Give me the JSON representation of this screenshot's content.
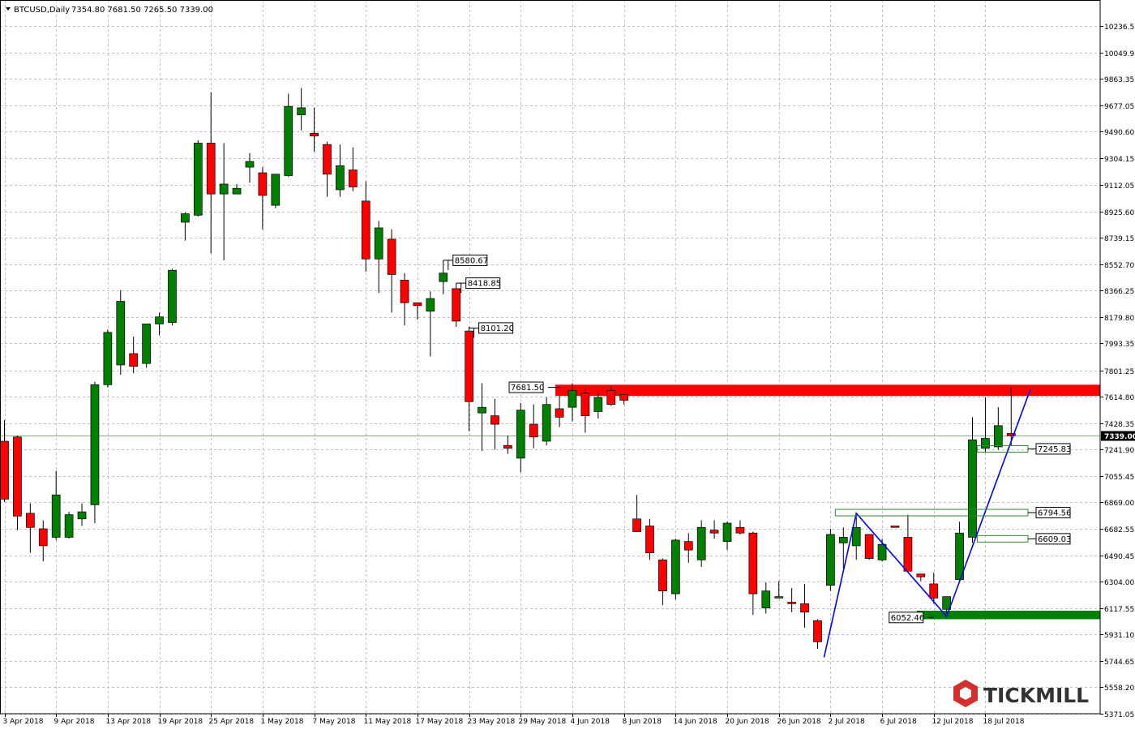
{
  "header": {
    "symbol_label": "BTCUSD,Daily",
    "ohlc_text": "7354.80 7681.50 7265.50 7339.00"
  },
  "brand": {
    "name": "TICKMILL",
    "accent": "#d32f2f",
    "dark": "#333333"
  },
  "colors": {
    "bull": "#008000",
    "bear": "#ff0000",
    "wick": "#000000",
    "grid": "#c0c0c0",
    "bid_line": "#7fb27f",
    "pattern_line": "#0000ff"
  },
  "chart_data": {
    "type": "candlestick",
    "symbol": "BTCUSD",
    "timeframe": "Daily",
    "last_price": 7339.0,
    "ylim": [
      5371.05,
      10423.0
    ],
    "y_ticks": [
      10236.55,
      10049.95,
      9863.35,
      9677.05,
      9490.6,
      9304.15,
      9112.05,
      8925.6,
      8739.15,
      8552.7,
      8366.25,
      8179.8,
      7993.35,
      7801.25,
      7614.8,
      7428.35,
      7241.9,
      7055.45,
      6869.0,
      6682.55,
      6490.45,
      6304.0,
      6117.55,
      5931.1,
      5744.65,
      5558.2,
      5371.05
    ],
    "x_labels": [
      {
        "i": 0,
        "label": "3 Apr 2018"
      },
      {
        "i": 4,
        "label": "9 Apr 2018"
      },
      {
        "i": 8,
        "label": "13 Apr 2018"
      },
      {
        "i": 12,
        "label": "19 Apr 2018"
      },
      {
        "i": 16,
        "label": "25 Apr 2018"
      },
      {
        "i": 20,
        "label": "1 May 2018"
      },
      {
        "i": 24,
        "label": "7 May 2018"
      },
      {
        "i": 28,
        "label": "11 May 2018"
      },
      {
        "i": 32,
        "label": "17 May 2018"
      },
      {
        "i": 36,
        "label": "23 May 2018"
      },
      {
        "i": 40,
        "label": "29 May 2018"
      },
      {
        "i": 44,
        "label": "4 Jun 2018"
      },
      {
        "i": 48,
        "label": "8 Jun 2018"
      },
      {
        "i": 52,
        "label": "14 Jun 2018"
      },
      {
        "i": 56,
        "label": "20 Jun 2018"
      },
      {
        "i": 60,
        "label": "26 Jun 2018"
      },
      {
        "i": 64,
        "label": "2 Jul 2018"
      },
      {
        "i": 68,
        "label": "6 Jul 2018"
      },
      {
        "i": 72,
        "label": "12 Jul 2018"
      },
      {
        "i": 76,
        "label": "18 Jul 2018"
      }
    ],
    "candles": [
      [
        7300,
        7450,
        6870,
        6890
      ],
      [
        7330,
        7340,
        6670,
        6770
      ],
      [
        6790,
        6860,
        6510,
        6690
      ],
      [
        6680,
        6740,
        6450,
        6560
      ],
      [
        6620,
        7090,
        6600,
        6920
      ],
      [
        6620,
        6800,
        6610,
        6780
      ],
      [
        6750,
        6860,
        6700,
        6800
      ],
      [
        6850,
        7720,
        6720,
        7700
      ],
      [
        7700,
        8090,
        7680,
        8070
      ],
      [
        7840,
        8370,
        7770,
        8290
      ],
      [
        7920,
        8040,
        7780,
        7830
      ],
      [
        7850,
        8130,
        7820,
        8130
      ],
      [
        8130,
        8210,
        8050,
        8180
      ],
      [
        8140,
        8520,
        8120,
        8510
      ],
      [
        8850,
        8920,
        8720,
        8910
      ],
      [
        8900,
        9430,
        8890,
        9410
      ],
      [
        9410,
        9770,
        8630,
        9050
      ],
      [
        9050,
        9410,
        8580,
        9120
      ],
      [
        9050,
        9120,
        9050,
        9090
      ],
      [
        9240,
        9340,
        9130,
        9280
      ],
      [
        9200,
        9240,
        8800,
        9040
      ],
      [
        8970,
        9190,
        8950,
        9190
      ],
      [
        9180,
        9760,
        9170,
        9670
      ],
      [
        9610,
        9800,
        9500,
        9660
      ],
      [
        9480,
        9660,
        9350,
        9460
      ],
      [
        9400,
        9420,
        9030,
        9190
      ],
      [
        9080,
        9400,
        9030,
        9250
      ],
      [
        9220,
        9380,
        9070,
        9100
      ],
      [
        9000,
        9140,
        8500,
        8590
      ],
      [
        8590,
        8860,
        8350,
        8810
      ],
      [
        8730,
        8800,
        8210,
        8480
      ],
      [
        8440,
        8490,
        8120,
        8280
      ],
      [
        8280,
        8270,
        8160,
        8260
      ],
      [
        8220,
        8360,
        7900,
        8310
      ],
      [
        8430,
        8580,
        8340,
        8490
      ],
      [
        8380,
        8420,
        8110,
        8150
      ],
      [
        8080,
        8110,
        7370,
        7580
      ],
      [
        7500,
        7710,
        7230,
        7540
      ],
      [
        7480,
        7600,
        7240,
        7420
      ],
      [
        7270,
        7340,
        7210,
        7250
      ],
      [
        7180,
        7570,
        7080,
        7520
      ],
      [
        7420,
        7560,
        7250,
        7330
      ],
      [
        7300,
        7610,
        7270,
        7560
      ],
      [
        7530,
        7620,
        7400,
        7470
      ],
      [
        7540,
        7710,
        7440,
        7660
      ],
      [
        7640,
        7670,
        7360,
        7480
      ],
      [
        7510,
        7640,
        7460,
        7610
      ],
      [
        7660,
        7690,
        7550,
        7560
      ],
      [
        7630,
        7640,
        7560,
        7590
      ],
      [
        6750,
        6920,
        6660,
        6660
      ],
      [
        6700,
        6750,
        6460,
        6510
      ],
      [
        6460,
        6470,
        6140,
        6240
      ],
      [
        6220,
        6610,
        6180,
        6600
      ],
      [
        6590,
        6650,
        6440,
        6530
      ],
      [
        6460,
        6740,
        6410,
        6690
      ],
      [
        6670,
        6740,
        6610,
        6650
      ],
      [
        6590,
        6730,
        6530,
        6720
      ],
      [
        6690,
        6740,
        6640,
        6650
      ],
      [
        6650,
        6660,
        6070,
        6220
      ],
      [
        6120,
        6300,
        6080,
        6240
      ],
      [
        6200,
        6310,
        6200,
        6190
      ],
      [
        6160,
        6260,
        6090,
        6150
      ],
      [
        6150,
        6290,
        5980,
        6090
      ],
      [
        6030,
        6040,
        5830,
        5880
      ],
      [
        6280,
        6680,
        6240,
        6640
      ],
      [
        6580,
        6690,
        6400,
        6620
      ],
      [
        6560,
        6780,
        6460,
        6690
      ],
      [
        6640,
        6630,
        6460,
        6470
      ],
      [
        6460,
        6610,
        6450,
        6570
      ],
      [
        6700,
        6700,
        6690,
        6690
      ],
      [
        6620,
        6780,
        6370,
        6380
      ],
      [
        6360,
        6350,
        6310,
        6340
      ],
      [
        6290,
        6370,
        6150,
        6190
      ],
      [
        6110,
        6200,
        6080,
        6200
      ],
      [
        6320,
        6730,
        6300,
        6650
      ],
      [
        6620,
        7470,
        6580,
        7310
      ],
      [
        7250,
        7610,
        7220,
        7320
      ],
      [
        7260,
        7540,
        7240,
        7410
      ],
      [
        7354.8,
        7681.5,
        7265.5,
        7339.0
      ]
    ],
    "price_labels": [
      {
        "value": "8580.67",
        "anchor_i": 34
      },
      {
        "value": "8418.85",
        "anchor_i": 35
      },
      {
        "value": "8101.20",
        "anchor_i": 36
      },
      {
        "value": "7681.50",
        "anchor_i": 43
      },
      {
        "value": "7245.83",
        "anchor_i": 76
      },
      {
        "value": "6794.56",
        "anchor_i": 65
      },
      {
        "value": "6609.03",
        "anchor_i": 76
      },
      {
        "value": "6052.46",
        "anchor_i": 72
      }
    ],
    "zones": [
      {
        "name": "resistance",
        "from_i": 43,
        "low": 7620,
        "high": 7700,
        "color": "#ff0000"
      },
      {
        "name": "support",
        "from_i": 71,
        "low": 6040,
        "high": 6100,
        "color": "#008000"
      }
    ],
    "pattern_line": [
      {
        "i": 63.5,
        "price": 5770
      },
      {
        "i": 66,
        "price": 6790
      },
      {
        "i": 73,
        "price": 6060
      },
      {
        "i": 79.5,
        "price": 7670
      }
    ],
    "grid": true
  }
}
